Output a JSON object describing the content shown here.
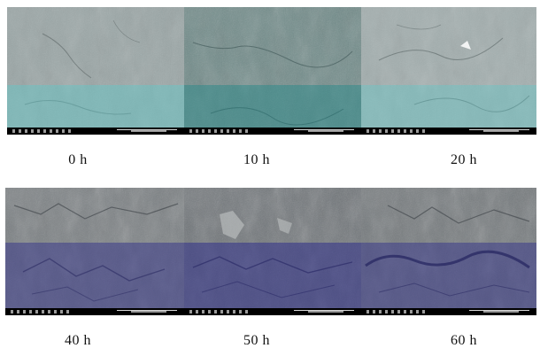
{
  "figure": {
    "rows": [
      {
        "panels": [
          {
            "caption": "0 h"
          },
          {
            "caption": "10 h"
          },
          {
            "caption": "20 h"
          }
        ]
      },
      {
        "panels": [
          {
            "caption": "40 h"
          },
          {
            "caption": "50 h"
          },
          {
            "caption": "60 h"
          }
        ]
      }
    ]
  },
  "colors": {
    "overlay_teal": "#5fc8c8",
    "overlay_navy": "#3a3a8a",
    "info_bar": "#000000",
    "caption_text": "#111111"
  }
}
